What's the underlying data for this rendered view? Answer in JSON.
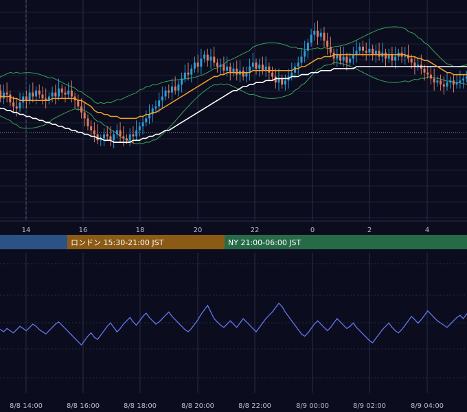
{
  "chart_data": [
    {
      "type": "candlestick",
      "title": "",
      "x_ticks_top": [
        "14",
        "16",
        "18",
        "20",
        "22",
        "0",
        "2",
        "4"
      ],
      "sessions": [
        {
          "label": "",
          "color": "#2c5184"
        },
        {
          "label": "ロンドン 15:30-21:00 JST",
          "color": "#8b5a14"
        },
        {
          "label": "NY 21:00-06:00 JST",
          "color": "#276a47"
        }
      ],
      "price_range": [
        0,
        100
      ],
      "reference_level": 37,
      "close": [
        58,
        54,
        57,
        56,
        52,
        50,
        49,
        52,
        55,
        53,
        57,
        55,
        58,
        56,
        54,
        53,
        55,
        57,
        55,
        59,
        57,
        56,
        58,
        55,
        53,
        50,
        47,
        44,
        40,
        38,
        36,
        33,
        34,
        36,
        35,
        33,
        36,
        38,
        35,
        34,
        33,
        36,
        35,
        38,
        40,
        42,
        44,
        46,
        49,
        50,
        53,
        55,
        58,
        57,
        60,
        58,
        61,
        64,
        67,
        66,
        69,
        72,
        70,
        74,
        76,
        73,
        75,
        72,
        70,
        71,
        68,
        70,
        67,
        69,
        66,
        68,
        65,
        67,
        70,
        72,
        69,
        71,
        68,
        70,
        67,
        65,
        62,
        64,
        61,
        63,
        65,
        67,
        70,
        72,
        75,
        78,
        82,
        86,
        88,
        85,
        87,
        83,
        80,
        77,
        74,
        76,
        73,
        75,
        72,
        74,
        76,
        78,
        80,
        78,
        77,
        79,
        76,
        78,
        75,
        77,
        74,
        76,
        73,
        75,
        77,
        75,
        76,
        74,
        72,
        70,
        71,
        69,
        67,
        66,
        64,
        62,
        63,
        61,
        60,
        62,
        63,
        61,
        62,
        63,
        64,
        65,
        66
      ],
      "sma_short": [
        55,
        55,
        55,
        55,
        55,
        54,
        54,
        53,
        53,
        53,
        53,
        53,
        53,
        53,
        53,
        53,
        53,
        54,
        54,
        54,
        54,
        54,
        54,
        54,
        54,
        53,
        53,
        52,
        51,
        50,
        48,
        47,
        47,
        46,
        46,
        45,
        45,
        45,
        44,
        44,
        44,
        44,
        44,
        44,
        45,
        45,
        46,
        46,
        47,
        47,
        48,
        49,
        50,
        51,
        52,
        53,
        54,
        55,
        56,
        57,
        58,
        59,
        60,
        61,
        62,
        63,
        64,
        65,
        65,
        66,
        66,
        67,
        67,
        67,
        67,
        67,
        67,
        67,
        67,
        68,
        68,
        68,
        68,
        68,
        68,
        68,
        68,
        68,
        68,
        68,
        68,
        68,
        69,
        69,
        70,
        70,
        71,
        72,
        73,
        74,
        74,
        75,
        75,
        75,
        76,
        76,
        76,
        76,
        76,
        76,
        76,
        76,
        76,
        76,
        76,
        76,
        76,
        76,
        76,
        76,
        76,
        76,
        76,
        76,
        76,
        76,
        76,
        75,
        75,
        75,
        74,
        74,
        73,
        73,
        72,
        71,
        70,
        69,
        68,
        67,
        67,
        66,
        66,
        66,
        66,
        66,
        66
      ],
      "sma_long": [
        50,
        49,
        49,
        48,
        48,
        47,
        47,
        46,
        46,
        45,
        45,
        44,
        44,
        43,
        43,
        42,
        42,
        41,
        41,
        40,
        40,
        39,
        39,
        38,
        38,
        37,
        37,
        36,
        36,
        35,
        35,
        34,
        34,
        33,
        33,
        33,
        32,
        32,
        32,
        32,
        32,
        32,
        33,
        33,
        33,
        34,
        34,
        35,
        35,
        36,
        36,
        37,
        38,
        38,
        39,
        40,
        41,
        42,
        43,
        44,
        45,
        46,
        47,
        48,
        49,
        50,
        51,
        52,
        53,
        54,
        55,
        56,
        57,
        58,
        58,
        59,
        60,
        60,
        61,
        61,
        62,
        62,
        62,
        63,
        63,
        63,
        64,
        64,
        64,
        64,
        64,
        65,
        65,
        65,
        66,
        66,
        66,
        67,
        67,
        67,
        68,
        68,
        68,
        68,
        69,
        69,
        69,
        69,
        69,
        69,
        69,
        70,
        70,
        70,
        70,
        70,
        70,
        70,
        70,
        70,
        70,
        70,
        70,
        70,
        70,
        70,
        70,
        70,
        70,
        70,
        70,
        70,
        70,
        70,
        70,
        70,
        70,
        70,
        70,
        70,
        70,
        70,
        70,
        70,
        70,
        70,
        70
      ],
      "oscillator": [
        52,
        50,
        48,
        51,
        49,
        47,
        50,
        53,
        51,
        49,
        52,
        55,
        53,
        50,
        48,
        46,
        49,
        52,
        55,
        57,
        54,
        51,
        48,
        45,
        42,
        39,
        36,
        40,
        44,
        47,
        43,
        41,
        45,
        49,
        53,
        56,
        52,
        48,
        51,
        55,
        58,
        61,
        57,
        54,
        58,
        62,
        65,
        61,
        58,
        55,
        57,
        60,
        63,
        66,
        62,
        59,
        56,
        53,
        50,
        48,
        51,
        55,
        59,
        64,
        68,
        72,
        66,
        60,
        57,
        54,
        52,
        55,
        58,
        55,
        52,
        56,
        60,
        57,
        54,
        51,
        48,
        52,
        56,
        60,
        63,
        66,
        70,
        74,
        71,
        66,
        62,
        58,
        54,
        50,
        46,
        44,
        47,
        51,
        55,
        58,
        55,
        52,
        49,
        52,
        56,
        60,
        57,
        54,
        51,
        53,
        56,
        52,
        49,
        46,
        43,
        40,
        38,
        42,
        46,
        50,
        53,
        56,
        52,
        49,
        47,
        50,
        54,
        58,
        62,
        59,
        56,
        59,
        63,
        67,
        64,
        61,
        58,
        56,
        54,
        52,
        55,
        58,
        61,
        63,
        60,
        64,
        67
      ],
      "x_ticks_bottom": [
        "8/8 14:00",
        "8/8 16:00",
        "8/8 18:00",
        "8/8 20:00",
        "8/8 22:00",
        "8/9 00:00",
        "8/9 02:00",
        "8/9 04:00"
      ],
      "colors": {
        "up": "#2e9bd6",
        "down": "#e07a5f",
        "sma_short": "#f5a023",
        "sma_long": "#ffffff",
        "band": "#3aa35a",
        "oscillator": "#6677ee"
      }
    }
  ]
}
